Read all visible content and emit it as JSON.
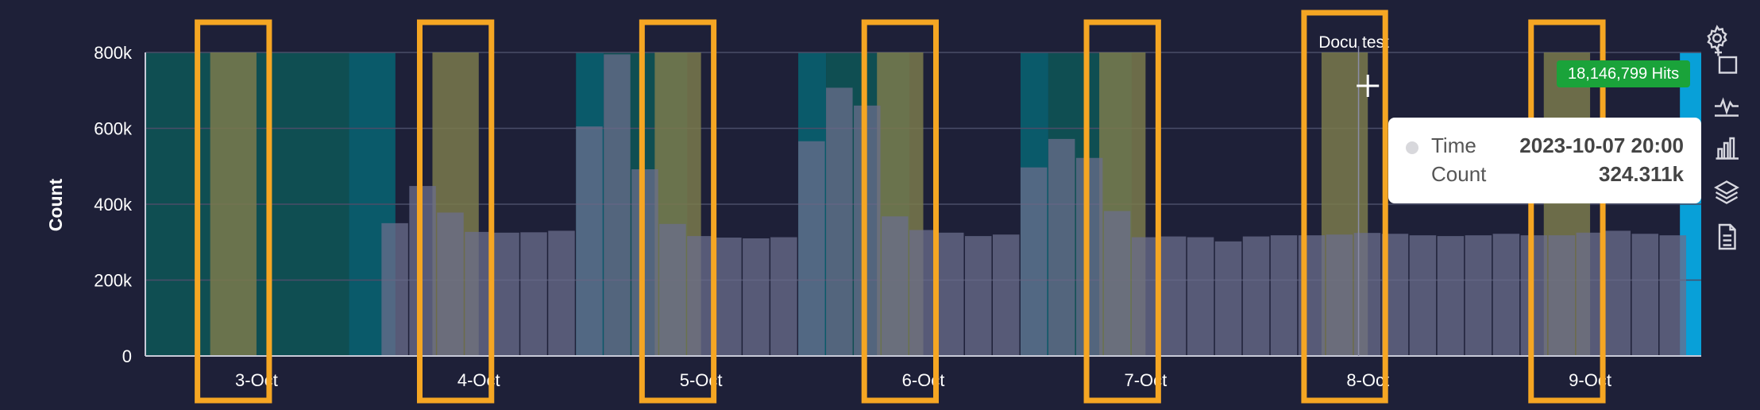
{
  "chart_data": {
    "type": "bar",
    "ylabel": "Count",
    "ylim": [
      0,
      800000
    ],
    "yticks": [
      {
        "value": 0,
        "label": "0"
      },
      {
        "value": 200000,
        "label": "200k"
      },
      {
        "value": 400000,
        "label": "400k"
      },
      {
        "value": 600000,
        "label": "600k"
      },
      {
        "value": 800000,
        "label": "800k"
      }
    ],
    "xlim": [
      0,
      168
    ],
    "xticks": [
      {
        "x": 12,
        "label": "3-Oct"
      },
      {
        "x": 36,
        "label": "4-Oct"
      },
      {
        "x": 60,
        "label": "5-Oct"
      },
      {
        "x": 84,
        "label": "6-Oct"
      },
      {
        "x": 108,
        "label": "7-Oct"
      },
      {
        "x": 132,
        "label": "8-Oct"
      },
      {
        "x": 156,
        "label": "9-Oct"
      }
    ],
    "bar_hours": 3,
    "bars": [
      {
        "x": 27,
        "value": 350000
      },
      {
        "x": 30,
        "value": 448000
      },
      {
        "x": 33,
        "value": 378000
      },
      {
        "x": 36,
        "value": 327000
      },
      {
        "x": 39,
        "value": 325000
      },
      {
        "x": 42,
        "value": 326000
      },
      {
        "x": 45,
        "value": 330000
      },
      {
        "x": 48,
        "value": 605000
      },
      {
        "x": 51,
        "value": 795000
      },
      {
        "x": 54,
        "value": 492000
      },
      {
        "x": 57,
        "value": 348000
      },
      {
        "x": 60,
        "value": 316000
      },
      {
        "x": 63,
        "value": 312000
      },
      {
        "x": 66,
        "value": 310000
      },
      {
        "x": 69,
        "value": 313000
      },
      {
        "x": 72,
        "value": 566000
      },
      {
        "x": 75,
        "value": 707000
      },
      {
        "x": 78,
        "value": 660000
      },
      {
        "x": 81,
        "value": 368000
      },
      {
        "x": 84,
        "value": 332000
      },
      {
        "x": 87,
        "value": 325000
      },
      {
        "x": 90,
        "value": 316000
      },
      {
        "x": 93,
        "value": 320000
      },
      {
        "x": 96,
        "value": 497000
      },
      {
        "x": 99,
        "value": 572000
      },
      {
        "x": 102,
        "value": 522000
      },
      {
        "x": 105,
        "value": 382000
      },
      {
        "x": 108,
        "value": 313000
      },
      {
        "x": 111,
        "value": 315000
      },
      {
        "x": 114,
        "value": 313000
      },
      {
        "x": 117,
        "value": 302000
      },
      {
        "x": 120,
        "value": 315000
      },
      {
        "x": 123,
        "value": 318000
      },
      {
        "x": 126,
        "value": 318000
      },
      {
        "x": 129,
        "value": 320000
      },
      {
        "x": 132,
        "value": 324311
      },
      {
        "x": 135,
        "value": 322000
      },
      {
        "x": 138,
        "value": 318000
      },
      {
        "x": 141,
        "value": 316000
      },
      {
        "x": 144,
        "value": 318000
      },
      {
        "x": 147,
        "value": 322000
      },
      {
        "x": 150,
        "value": 318000
      },
      {
        "x": 153,
        "value": 318000
      },
      {
        "x": 156,
        "value": 325000
      },
      {
        "x": 159,
        "value": 330000
      },
      {
        "x": 162,
        "value": 322000
      },
      {
        "x": 165,
        "value": 318000
      }
    ],
    "bar_color": "#6b6e8c",
    "shaded_periods": [
      {
        "x0": 0,
        "x1": 22,
        "color": "#0f4e52"
      },
      {
        "x0": 22,
        "x1": 27,
        "color": "#0a5a6a"
      },
      {
        "x0": 46.5,
        "x1": 49.5,
        "color": "#0a5a6a"
      },
      {
        "x0": 49.5,
        "x1": 58.5,
        "color": "#0f4e52"
      },
      {
        "x0": 70.5,
        "x1": 73.5,
        "color": "#0a5a6a"
      },
      {
        "x0": 73.5,
        "x1": 82.5,
        "color": "#0f4e52"
      },
      {
        "x0": 94.5,
        "x1": 97.5,
        "color": "#0a5a6a"
      },
      {
        "x0": 97.5,
        "x1": 106.5,
        "color": "#0f4e52"
      },
      {
        "x0": 165.7,
        "x1": 168,
        "color": "#08a0d8"
      }
    ],
    "highlight_bands": [
      {
        "x0": 7,
        "x1": 12,
        "color": "#7a7a4c"
      },
      {
        "x0": 31,
        "x1": 36,
        "color": "#7a7a4c"
      },
      {
        "x0": 55,
        "x1": 60,
        "color": "#7a7a4c"
      },
      {
        "x0": 79,
        "x1": 84,
        "color": "#7a7a4c"
      },
      {
        "x0": 103,
        "x1": 108,
        "color": "#7a7a4c"
      },
      {
        "x0": 127,
        "x1": 132,
        "color": "#7a7a4c"
      },
      {
        "x0": 151,
        "x1": 156,
        "color": "#7a7a4c"
      }
    ],
    "annotation": {
      "x": 131,
      "label": "Docu test"
    },
    "crosshair_x": 132
  },
  "tooltip": {
    "time_label": "Time",
    "time_value": "2023-10-07 20:00",
    "count_label": "Count",
    "count_value": "324.311k"
  },
  "hits_badge": "18,146,799 Hits",
  "callout_color": "#f5a623",
  "sidebar_icons": [
    "gear-icon",
    "crop-icon",
    "pulse-icon",
    "bar-chart-icon",
    "layers-icon",
    "document-icon"
  ]
}
